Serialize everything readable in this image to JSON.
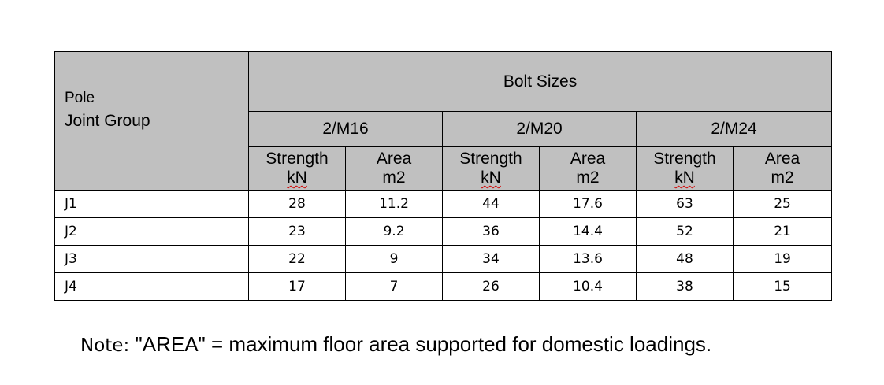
{
  "table": {
    "pole_header": [
      "Pole",
      "Joint Group"
    ],
    "bolt_header": "Bolt Sizes",
    "sizes": [
      "2/M16",
      "2/M20",
      "2/M24"
    ],
    "sub_headers": [
      {
        "line1": "Strength",
        "line2": "kN"
      },
      {
        "line1": "Area",
        "line2": "m2"
      }
    ],
    "rows": [
      {
        "group": "J1",
        "values": [
          "28",
          "11.2",
          "44",
          "17.6",
          "63",
          "25"
        ]
      },
      {
        "group": "J2",
        "values": [
          "23",
          "9.2",
          "36",
          "14.4",
          "52",
          "21"
        ]
      },
      {
        "group": "J3",
        "values": [
          "22",
          "9",
          "34",
          "13.6",
          "48",
          "19"
        ]
      },
      {
        "group": "J4",
        "values": [
          "17",
          "7",
          "26",
          "10.4",
          "38",
          "15"
        ]
      }
    ]
  },
  "note": {
    "label": "Note: ",
    "text": "\"AREA\" = maximum floor area supported for domestic loadings."
  }
}
